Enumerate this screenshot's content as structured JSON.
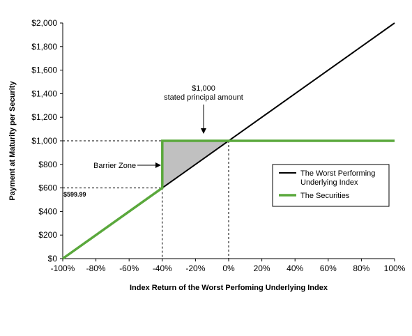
{
  "chart_data": {
    "type": "line",
    "title": "",
    "xlabel": "Index Return of the Worst Perfoming Underlying Index",
    "ylabel": "Payment at Maturity per Security",
    "xlim": [
      -100,
      100
    ],
    "ylim": [
      0,
      2000
    ],
    "x_ticks": [
      "-100%",
      "-80%",
      "-60%",
      "-40%",
      "-20%",
      "0%",
      "20%",
      "40%",
      "60%",
      "80%",
      "100%"
    ],
    "y_ticks": [
      "$0",
      "$200",
      "$400",
      "$600",
      "$800",
      "$1,000",
      "$1,200",
      "$1,400",
      "$1,600",
      "$1,800",
      "$2,000"
    ],
    "grid": false,
    "legend_position": "right",
    "series": [
      {
        "name": "The Worst Performing Underlying Index",
        "color": "#000000",
        "points": [
          [
            -40,
            599.99
          ],
          [
            100,
            2000
          ]
        ]
      },
      {
        "name": "The Securities",
        "color": "#5aa83c",
        "points": [
          [
            -100,
            0
          ],
          [
            -40,
            599.99
          ],
          [
            -40,
            1000
          ],
          [
            100,
            1000
          ]
        ]
      }
    ],
    "annotations": {
      "principal_line1": "$1,000",
      "principal_line2": "stated principal amount",
      "barrier_zone": "Barrier Zone",
      "barrier_value": "$599.99"
    },
    "barrier_zone_fill": "#c0c0c0"
  }
}
